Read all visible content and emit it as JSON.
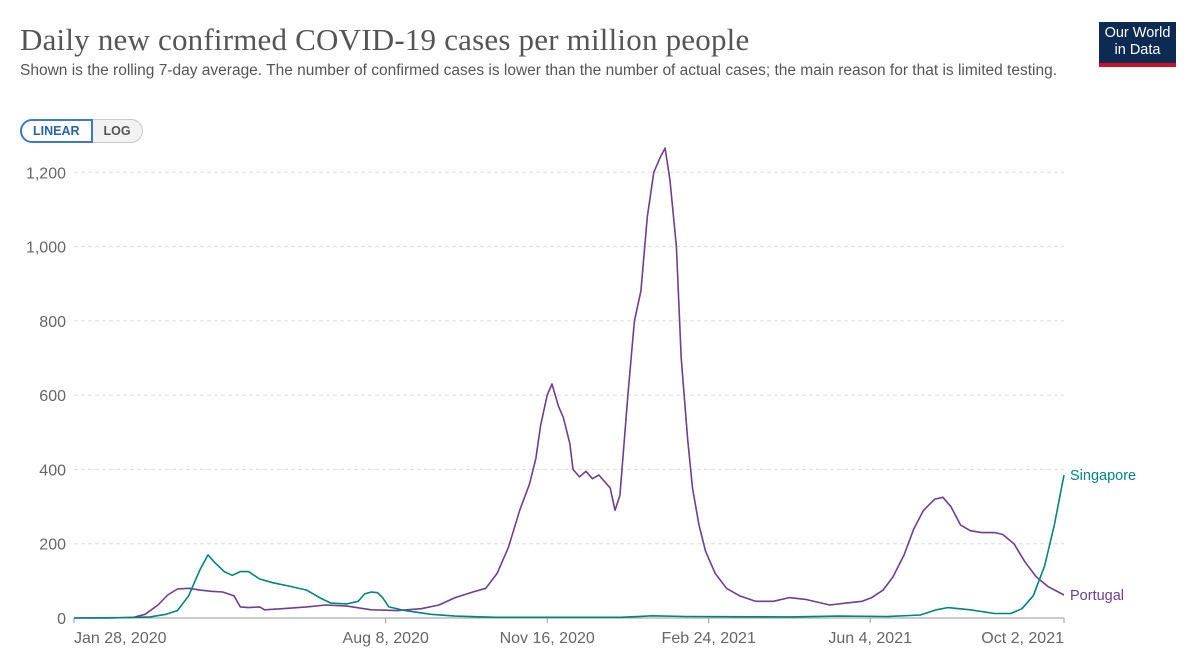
{
  "header": {
    "title": "Daily new confirmed COVID-19 cases per million people",
    "subtitle": "Shown is the rolling 7-day average. The number of confirmed cases is lower than the number of actual cases; the main reason for that is limited testing.",
    "logo_line1": "Our World",
    "logo_line2": "in Data",
    "logo_colors": {
      "background": "#0d2a52",
      "stripe": "#ce1126"
    }
  },
  "controls": {
    "linear_label": "LINEAR",
    "log_label": "LOG",
    "selected": "LINEAR"
  },
  "chart_data": {
    "type": "line",
    "title": "Daily new confirmed COVID-19 cases per million people",
    "subtitle": "Shown is the rolling 7-day average. The number of confirmed cases is lower than the number of actual cases; the main reason for that is limited testing.",
    "xlabel": "",
    "ylabel": "",
    "x_range": [
      "2020-01-28",
      "2021-10-02"
    ],
    "ylim": [
      0,
      1260
    ],
    "y_ticks": [
      0,
      200,
      400,
      600,
      800,
      1000,
      1200
    ],
    "y_tick_labels": [
      "0",
      "200",
      "400",
      "600",
      "800",
      "1,000",
      "1,200"
    ],
    "x_ticks": [
      "2020-01-28",
      "2020-08-08",
      "2020-11-16",
      "2021-02-24",
      "2021-06-04",
      "2021-10-02"
    ],
    "x_tick_labels": [
      "Jan 28, 2020",
      "Aug 8, 2020",
      "Nov 16, 2020",
      "Feb 24, 2021",
      "Jun 4, 2021",
      "Oct 2, 2021"
    ],
    "grid": "horizontal dashed",
    "legend": "inline labels at line ends",
    "series": [
      {
        "name": "Portugal",
        "color": "#6d3e91",
        "points": [
          [
            "2020-01-28",
            0
          ],
          [
            "2020-02-20",
            0
          ],
          [
            "2020-03-05",
            2
          ],
          [
            "2020-03-12",
            10
          ],
          [
            "2020-03-20",
            35
          ],
          [
            "2020-03-26",
            62
          ],
          [
            "2020-04-01",
            78
          ],
          [
            "2020-04-08",
            80
          ],
          [
            "2020-04-15",
            75
          ],
          [
            "2020-04-22",
            72
          ],
          [
            "2020-04-29",
            70
          ],
          [
            "2020-05-06",
            60
          ],
          [
            "2020-05-10",
            30
          ],
          [
            "2020-05-15",
            28
          ],
          [
            "2020-05-22",
            30
          ],
          [
            "2020-05-25",
            22
          ],
          [
            "2020-06-05",
            25
          ],
          [
            "2020-06-20",
            30
          ],
          [
            "2020-07-02",
            35
          ],
          [
            "2020-07-15",
            32
          ],
          [
            "2020-07-30",
            22
          ],
          [
            "2020-08-15",
            20
          ],
          [
            "2020-08-30",
            25
          ],
          [
            "2020-09-10",
            35
          ],
          [
            "2020-09-20",
            55
          ],
          [
            "2020-10-01",
            70
          ],
          [
            "2020-10-09",
            80
          ],
          [
            "2020-10-16",
            120
          ],
          [
            "2020-10-23",
            190
          ],
          [
            "2020-10-30",
            290
          ],
          [
            "2020-11-05",
            360
          ],
          [
            "2020-11-09",
            430
          ],
          [
            "2020-11-12",
            520
          ],
          [
            "2020-11-16",
            600
          ],
          [
            "2020-11-19",
            630
          ],
          [
            "2020-11-23",
            570
          ],
          [
            "2020-11-26",
            540
          ],
          [
            "2020-11-30",
            470
          ],
          [
            "2020-12-02",
            400
          ],
          [
            "2020-12-06",
            380
          ],
          [
            "2020-12-10",
            395
          ],
          [
            "2020-12-14",
            375
          ],
          [
            "2020-12-18",
            385
          ],
          [
            "2020-12-21",
            370
          ],
          [
            "2020-12-25",
            350
          ],
          [
            "2020-12-28",
            290
          ],
          [
            "2020-12-31",
            330
          ],
          [
            "2021-01-05",
            600
          ],
          [
            "2021-01-09",
            800
          ],
          [
            "2021-01-13",
            880
          ],
          [
            "2021-01-17",
            1080
          ],
          [
            "2021-01-21",
            1200
          ],
          [
            "2021-01-25",
            1240
          ],
          [
            "2021-01-28",
            1265
          ],
          [
            "2021-01-31",
            1180
          ],
          [
            "2021-02-04",
            1000
          ],
          [
            "2021-02-07",
            700
          ],
          [
            "2021-02-11",
            480
          ],
          [
            "2021-02-14",
            350
          ],
          [
            "2021-02-18",
            250
          ],
          [
            "2021-02-22",
            180
          ],
          [
            "2021-02-28",
            120
          ],
          [
            "2021-03-07",
            80
          ],
          [
            "2021-03-15",
            60
          ],
          [
            "2021-03-25",
            45
          ],
          [
            "2021-04-05",
            45
          ],
          [
            "2021-04-15",
            55
          ],
          [
            "2021-04-25",
            50
          ],
          [
            "2021-05-10",
            35
          ],
          [
            "2021-05-20",
            40
          ],
          [
            "2021-05-30",
            45
          ],
          [
            "2021-06-05",
            55
          ],
          [
            "2021-06-12",
            75
          ],
          [
            "2021-06-18",
            110
          ],
          [
            "2021-06-25",
            170
          ],
          [
            "2021-07-01",
            240
          ],
          [
            "2021-07-07",
            290
          ],
          [
            "2021-07-14",
            320
          ],
          [
            "2021-07-19",
            325
          ],
          [
            "2021-07-24",
            300
          ],
          [
            "2021-07-30",
            250
          ],
          [
            "2021-08-05",
            235
          ],
          [
            "2021-08-12",
            230
          ],
          [
            "2021-08-20",
            230
          ],
          [
            "2021-08-25",
            225
          ],
          [
            "2021-09-01",
            200
          ],
          [
            "2021-09-08",
            150
          ],
          [
            "2021-09-15",
            110
          ],
          [
            "2021-09-22",
            85
          ],
          [
            "2021-10-02",
            62
          ]
        ]
      },
      {
        "name": "Singapore",
        "color": "#00847e",
        "points": [
          [
            "2020-01-28",
            0
          ],
          [
            "2020-03-01",
            1
          ],
          [
            "2020-03-15",
            3
          ],
          [
            "2020-03-25",
            10
          ],
          [
            "2020-04-01",
            20
          ],
          [
            "2020-04-08",
            60
          ],
          [
            "2020-04-15",
            130
          ],
          [
            "2020-04-20",
            170
          ],
          [
            "2020-04-24",
            150
          ],
          [
            "2020-04-30",
            125
          ],
          [
            "2020-05-05",
            115
          ],
          [
            "2020-05-10",
            125
          ],
          [
            "2020-05-15",
            125
          ],
          [
            "2020-05-22",
            105
          ],
          [
            "2020-05-30",
            95
          ],
          [
            "2020-06-10",
            85
          ],
          [
            "2020-06-20",
            75
          ],
          [
            "2020-06-28",
            55
          ],
          [
            "2020-07-05",
            40
          ],
          [
            "2020-07-15",
            38
          ],
          [
            "2020-07-22",
            45
          ],
          [
            "2020-07-26",
            65
          ],
          [
            "2020-07-30",
            70
          ],
          [
            "2020-08-03",
            68
          ],
          [
            "2020-08-06",
            55
          ],
          [
            "2020-08-10",
            30
          ],
          [
            "2020-08-20",
            20
          ],
          [
            "2020-09-05",
            10
          ],
          [
            "2020-09-20",
            5
          ],
          [
            "2020-10-15",
            2
          ],
          [
            "2021-01-01",
            2
          ],
          [
            "2021-01-20",
            6
          ],
          [
            "2021-02-10",
            4
          ],
          [
            "2021-04-15",
            3
          ],
          [
            "2021-05-15",
            5
          ],
          [
            "2021-06-15",
            4
          ],
          [
            "2021-07-05",
            8
          ],
          [
            "2021-07-15",
            22
          ],
          [
            "2021-07-22",
            28
          ],
          [
            "2021-08-05",
            22
          ],
          [
            "2021-08-20",
            12
          ],
          [
            "2021-08-30",
            12
          ],
          [
            "2021-09-06",
            25
          ],
          [
            "2021-09-13",
            60
          ],
          [
            "2021-09-20",
            140
          ],
          [
            "2021-09-26",
            250
          ],
          [
            "2021-10-02",
            385
          ]
        ]
      }
    ]
  }
}
